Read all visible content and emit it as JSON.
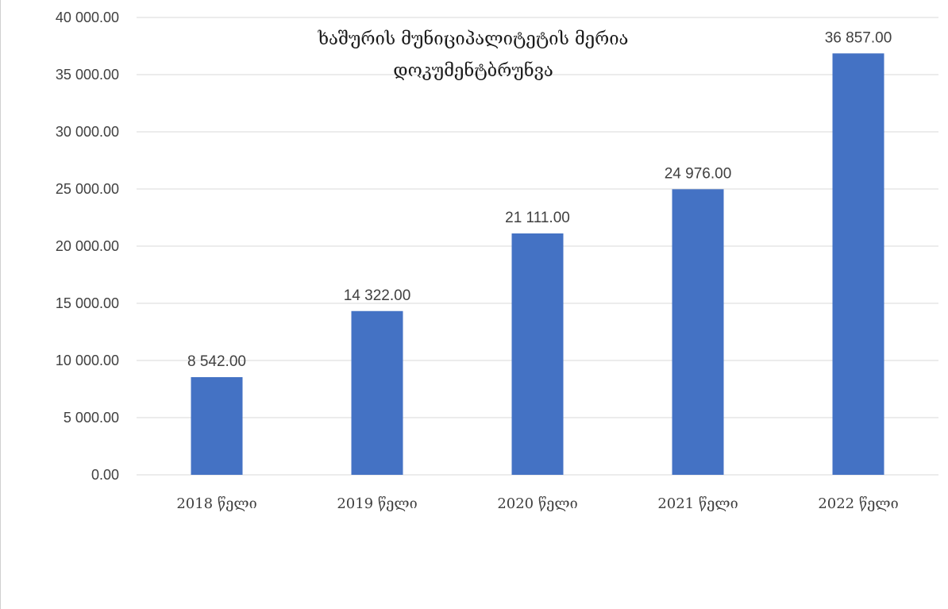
{
  "chart_data": {
    "type": "bar",
    "title_lines": [
      "ხაშურის მუნიციპალიტეტის მერია",
      "დოკუმენტბრუნვა"
    ],
    "categories": [
      "2018 წელი",
      "2019 წელი",
      "2020 წელი",
      "2021 წელი",
      "2022 წელი"
    ],
    "values": [
      8542,
      14322,
      21111,
      24976,
      36857
    ],
    "data_labels": [
      "8 542.00",
      "14 322.00",
      "21 111.00",
      "24 976.00",
      "36 857.00"
    ],
    "y_ticks": [
      {
        "value": 0,
        "label": "0.00"
      },
      {
        "value": 5000,
        "label": "5 000.00"
      },
      {
        "value": 10000,
        "label": "10 000.00"
      },
      {
        "value": 15000,
        "label": "15 000.00"
      },
      {
        "value": 20000,
        "label": "20 000.00"
      },
      {
        "value": 25000,
        "label": "25 000.00"
      },
      {
        "value": 30000,
        "label": "30 000.00"
      },
      {
        "value": 35000,
        "label": "35 000.00"
      },
      {
        "value": 40000,
        "label": "40 000.00"
      }
    ],
    "ylim": [
      0,
      40000
    ],
    "grid": true,
    "legend": "none",
    "bar_color": "#4472C4",
    "grid_color": "#D9D9D9"
  }
}
